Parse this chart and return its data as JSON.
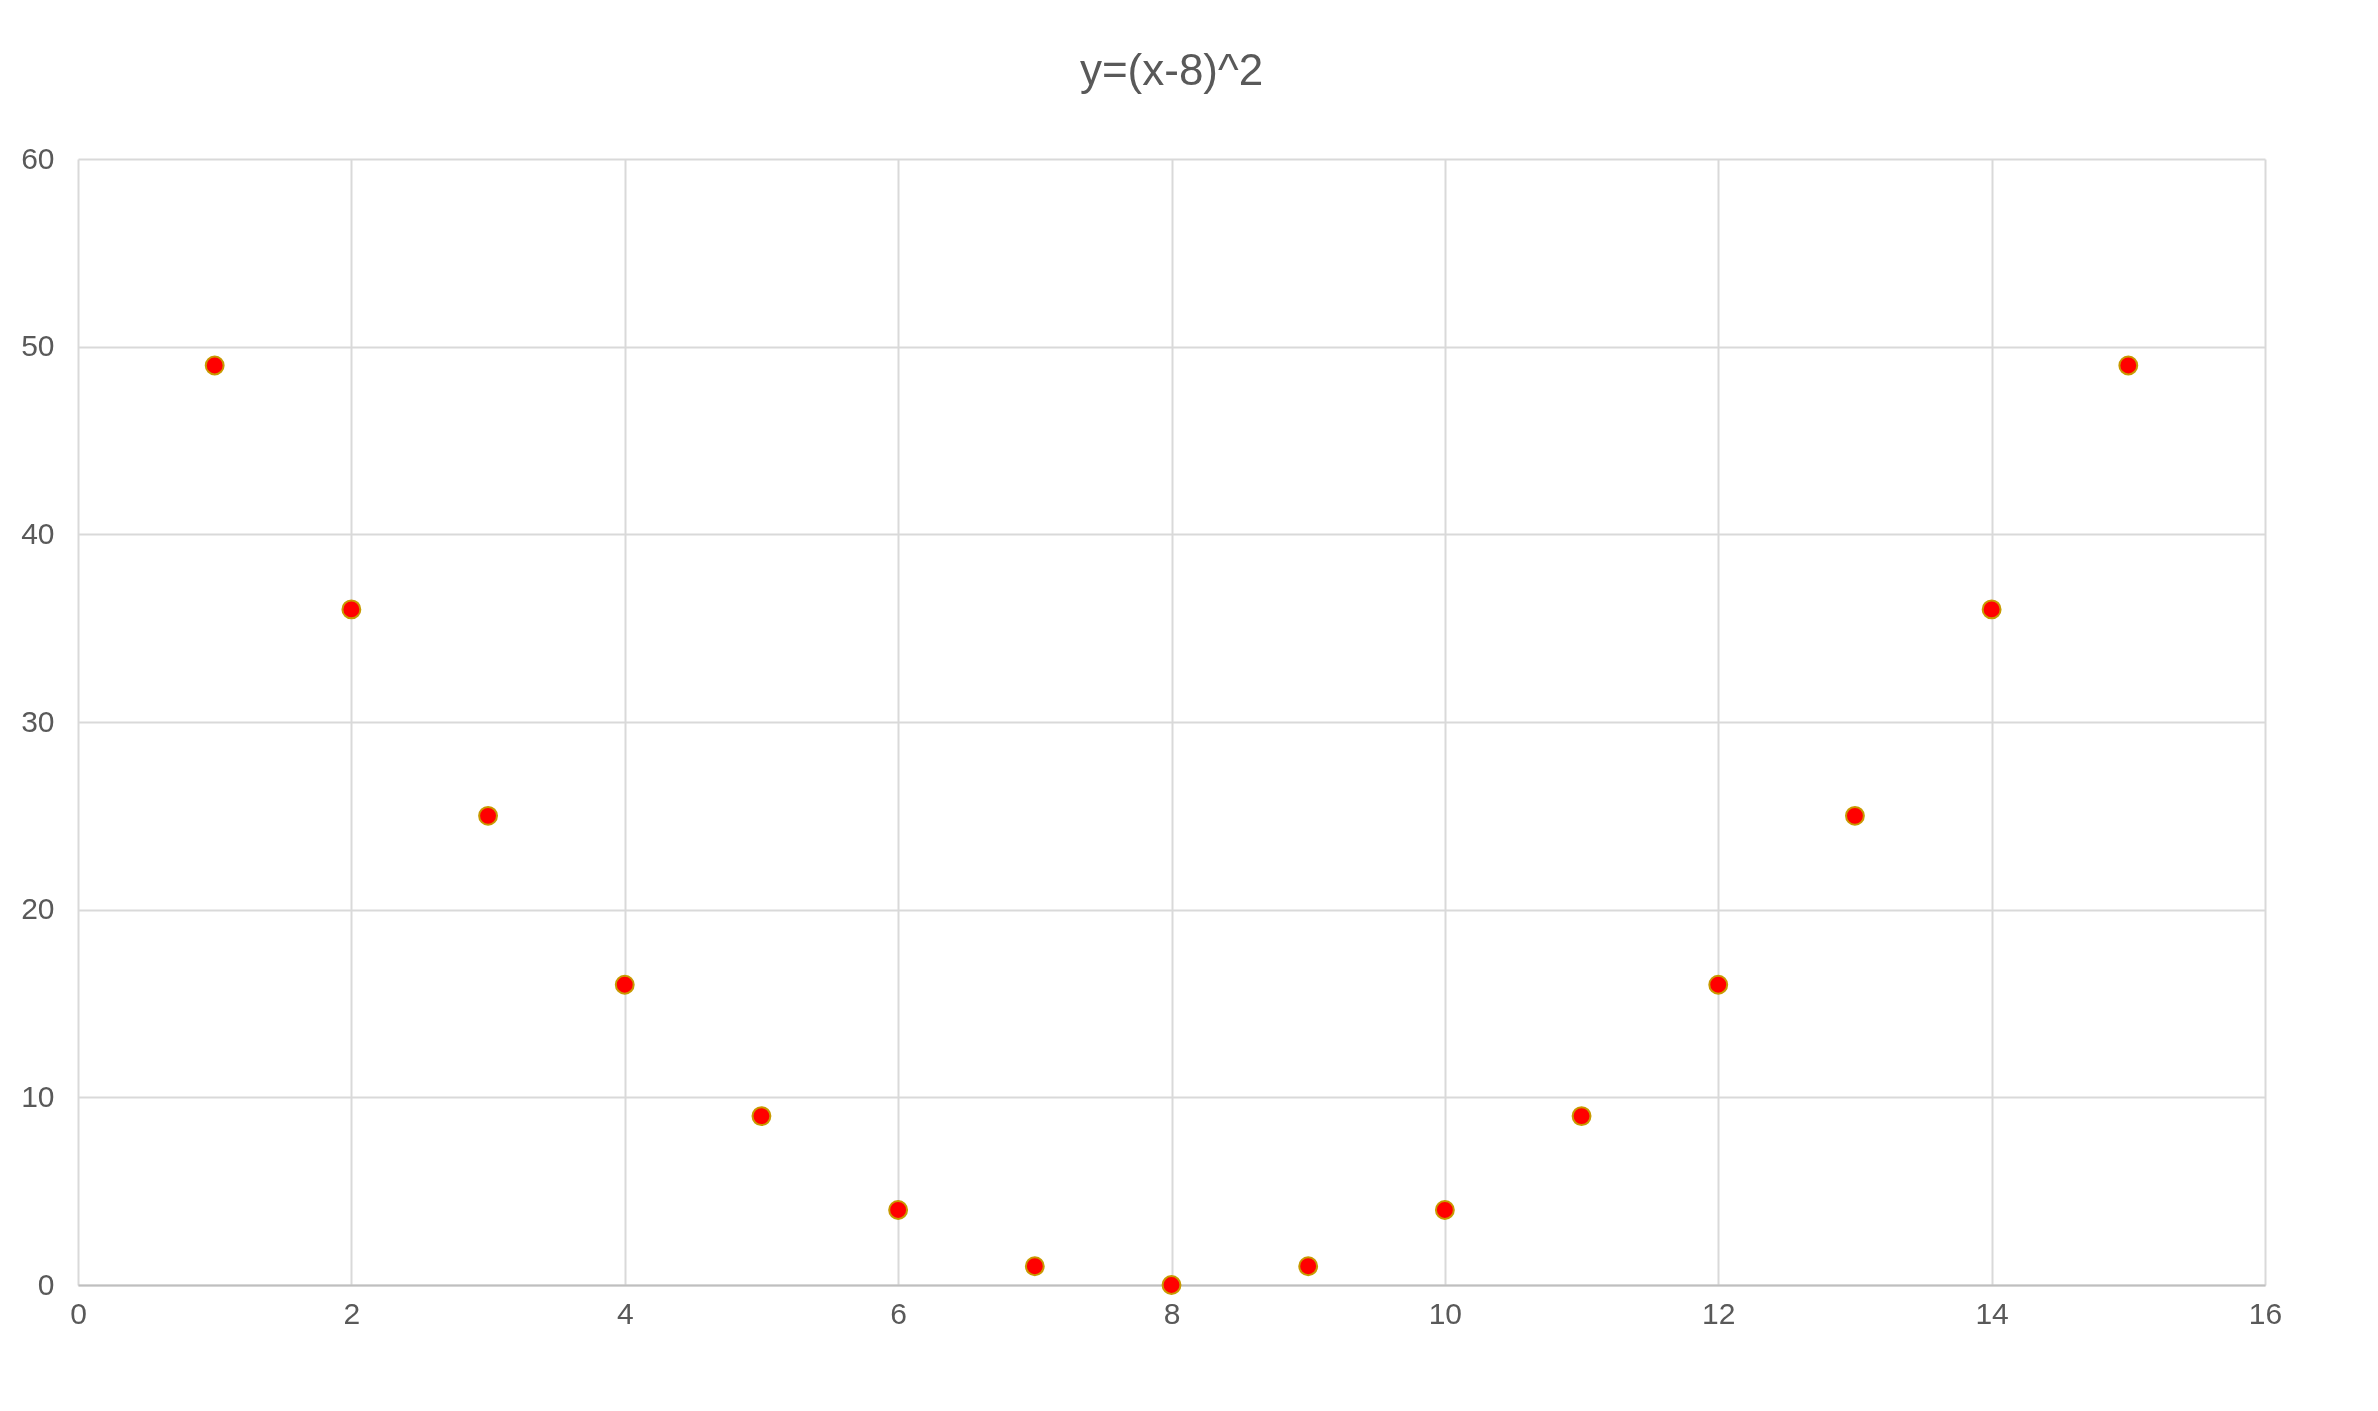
{
  "chart_data": {
    "type": "scatter",
    "title": "y=(x-8)^2",
    "x": [
      1,
      2,
      3,
      4,
      5,
      6,
      7,
      8,
      9,
      10,
      11,
      12,
      13,
      14,
      15
    ],
    "series": [
      {
        "color": "#ff0000",
        "values": [
          49,
          36,
          25,
          16,
          9,
          4,
          1,
          0,
          1,
          4,
          9,
          16,
          25,
          36,
          49
        ]
      }
    ],
    "xlim": [
      0,
      16
    ],
    "xticks": [
      0,
      2,
      4,
      6,
      8,
      10,
      12,
      14,
      16
    ],
    "ylim": [
      0,
      60
    ],
    "yticks": [
      0,
      10,
      20,
      30,
      40,
      50,
      60
    ],
    "grid": true,
    "marker": "circle"
  }
}
